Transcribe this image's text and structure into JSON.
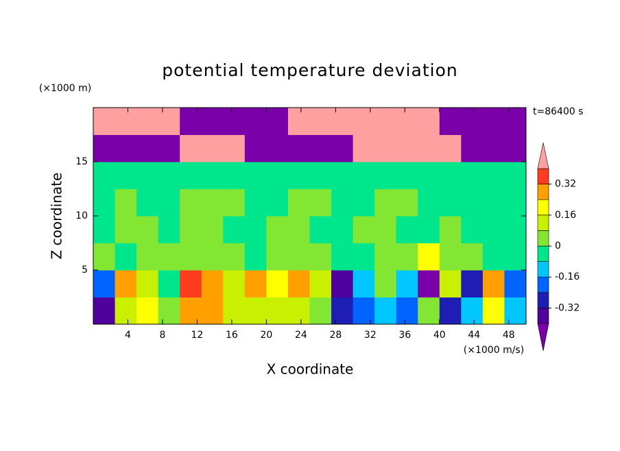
{
  "chart_data": {
    "type": "contour",
    "title": "potential temperature deviation",
    "x_label": "X coordinate",
    "y_label": "Z coordinate",
    "x_unit": "(×1000 m/s)",
    "y_unit": "(×1000 m)",
    "annotation": "t=86400 s",
    "xlim": [
      0,
      50
    ],
    "ylim": [
      0,
      20
    ],
    "xticks": [
      4,
      8,
      12,
      16,
      20,
      24,
      28,
      32,
      36,
      40,
      44,
      48
    ],
    "yticks": [
      5,
      10,
      15
    ],
    "x": [
      0,
      2.5,
      5,
      7.5,
      10,
      12.5,
      15,
      17.5,
      20,
      22.5,
      25,
      27.5,
      30,
      32.5,
      35,
      37.5,
      40,
      42.5,
      45,
      47.5,
      50
    ],
    "y": [
      0,
      2.5,
      5,
      7.5,
      10,
      12.5,
      15,
      17.5,
      20
    ],
    "z": [
      [
        -0.35,
        0.1,
        0.2,
        0.05,
        0.3,
        0.28,
        0.15,
        0.1,
        0.12,
        0.15,
        0.05,
        -0.3,
        -0.2,
        -0.1,
        -0.2,
        0.05,
        -0.25,
        -0.12,
        0.2,
        -0.15
      ],
      [
        -0.2,
        0.25,
        0.1,
        -0.05,
        0.35,
        0.3,
        0.1,
        0.3,
        0.2,
        0.25,
        0.15,
        -0.35,
        -0.1,
        0.05,
        -0.15,
        -0.45,
        0.1,
        -0.3,
        0.3,
        -0.2
      ],
      [
        0.03,
        -0.03,
        0.03,
        0.03,
        0.03,
        0.03,
        0.03,
        -0.03,
        0.03,
        0.03,
        0.03,
        -0.03,
        -0.03,
        0.03,
        0.03,
        0.2,
        0.03,
        0.03,
        -0.03,
        -0.03
      ],
      [
        -0.03,
        0.03,
        0.03,
        -0.03,
        0.03,
        0.03,
        -0.03,
        -0.03,
        0.03,
        0.03,
        -0.03,
        -0.03,
        0.03,
        0.03,
        -0.03,
        -0.03,
        0.03,
        -0.03,
        -0.03,
        -0.03
      ],
      [
        -0.03,
        0.03,
        -0.03,
        -0.03,
        0.03,
        0.03,
        0.03,
        -0.03,
        -0.03,
        0.03,
        0.03,
        -0.03,
        -0.03,
        0.03,
        0.03,
        -0.03,
        -0.03,
        -0.03,
        -0.03,
        -0.03
      ],
      [
        -0.05,
        -0.05,
        -0.05,
        -0.05,
        -0.05,
        -0.05,
        -0.05,
        -0.05,
        -0.05,
        -0.05,
        -0.05,
        -0.05,
        -0.05,
        -0.05,
        -0.05,
        -0.05,
        -0.05,
        -0.05,
        -0.05,
        -0.05
      ],
      [
        -0.5,
        -0.5,
        -0.5,
        -0.5,
        0.5,
        0.5,
        0.5,
        -0.5,
        -0.5,
        -0.5,
        -0.5,
        -0.5,
        0.5,
        0.5,
        0.5,
        0.5,
        0.5,
        -0.5,
        -0.5,
        -0.5
      ],
      [
        0.5,
        0.5,
        0.5,
        0.5,
        -0.5,
        -0.5,
        -0.5,
        -0.5,
        -0.5,
        0.5,
        0.5,
        0.5,
        0.5,
        0.5,
        0.5,
        0.5,
        -0.5,
        -0.5,
        -0.5,
        -0.5
      ]
    ],
    "levels": [
      -0.4,
      -0.32,
      -0.24,
      -0.16,
      -0.08,
      0,
      0.08,
      0.16,
      0.24,
      0.32,
      0.4
    ],
    "colors": [
      "#7a00aa",
      "#50009c",
      "#1e1eb4",
      "#0064ff",
      "#00c8ff",
      "#00e68c",
      "#82e632",
      "#c8f000",
      "#ffff00",
      "#ffa000",
      "#ff3c1e",
      "#ffa0a0"
    ],
    "colorbar_ticks": [
      -0.32,
      -0.16,
      0,
      0.16,
      0.32
    ]
  }
}
